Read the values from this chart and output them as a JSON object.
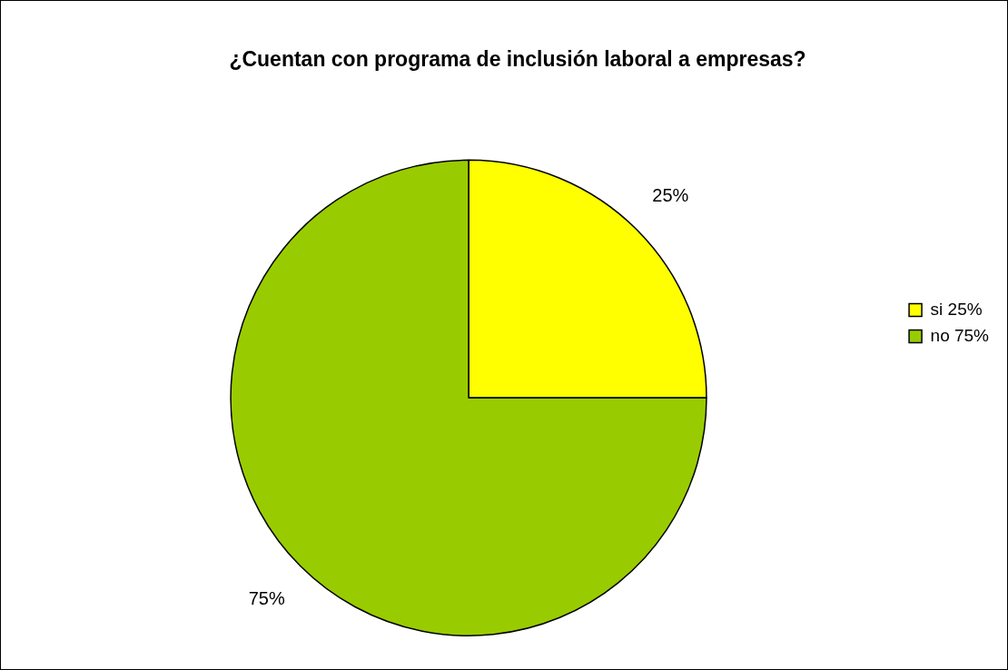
{
  "chart_data": {
    "type": "pie",
    "title": "¿Cuentan con programa de inclusión laboral a empresas?",
    "categories": [
      "si 25%",
      "no 75%"
    ],
    "values": [
      25,
      75
    ],
    "colors": [
      "#ffff00",
      "#99cc00"
    ],
    "value_labels": [
      "25%",
      "75%"
    ],
    "legend": "right"
  }
}
